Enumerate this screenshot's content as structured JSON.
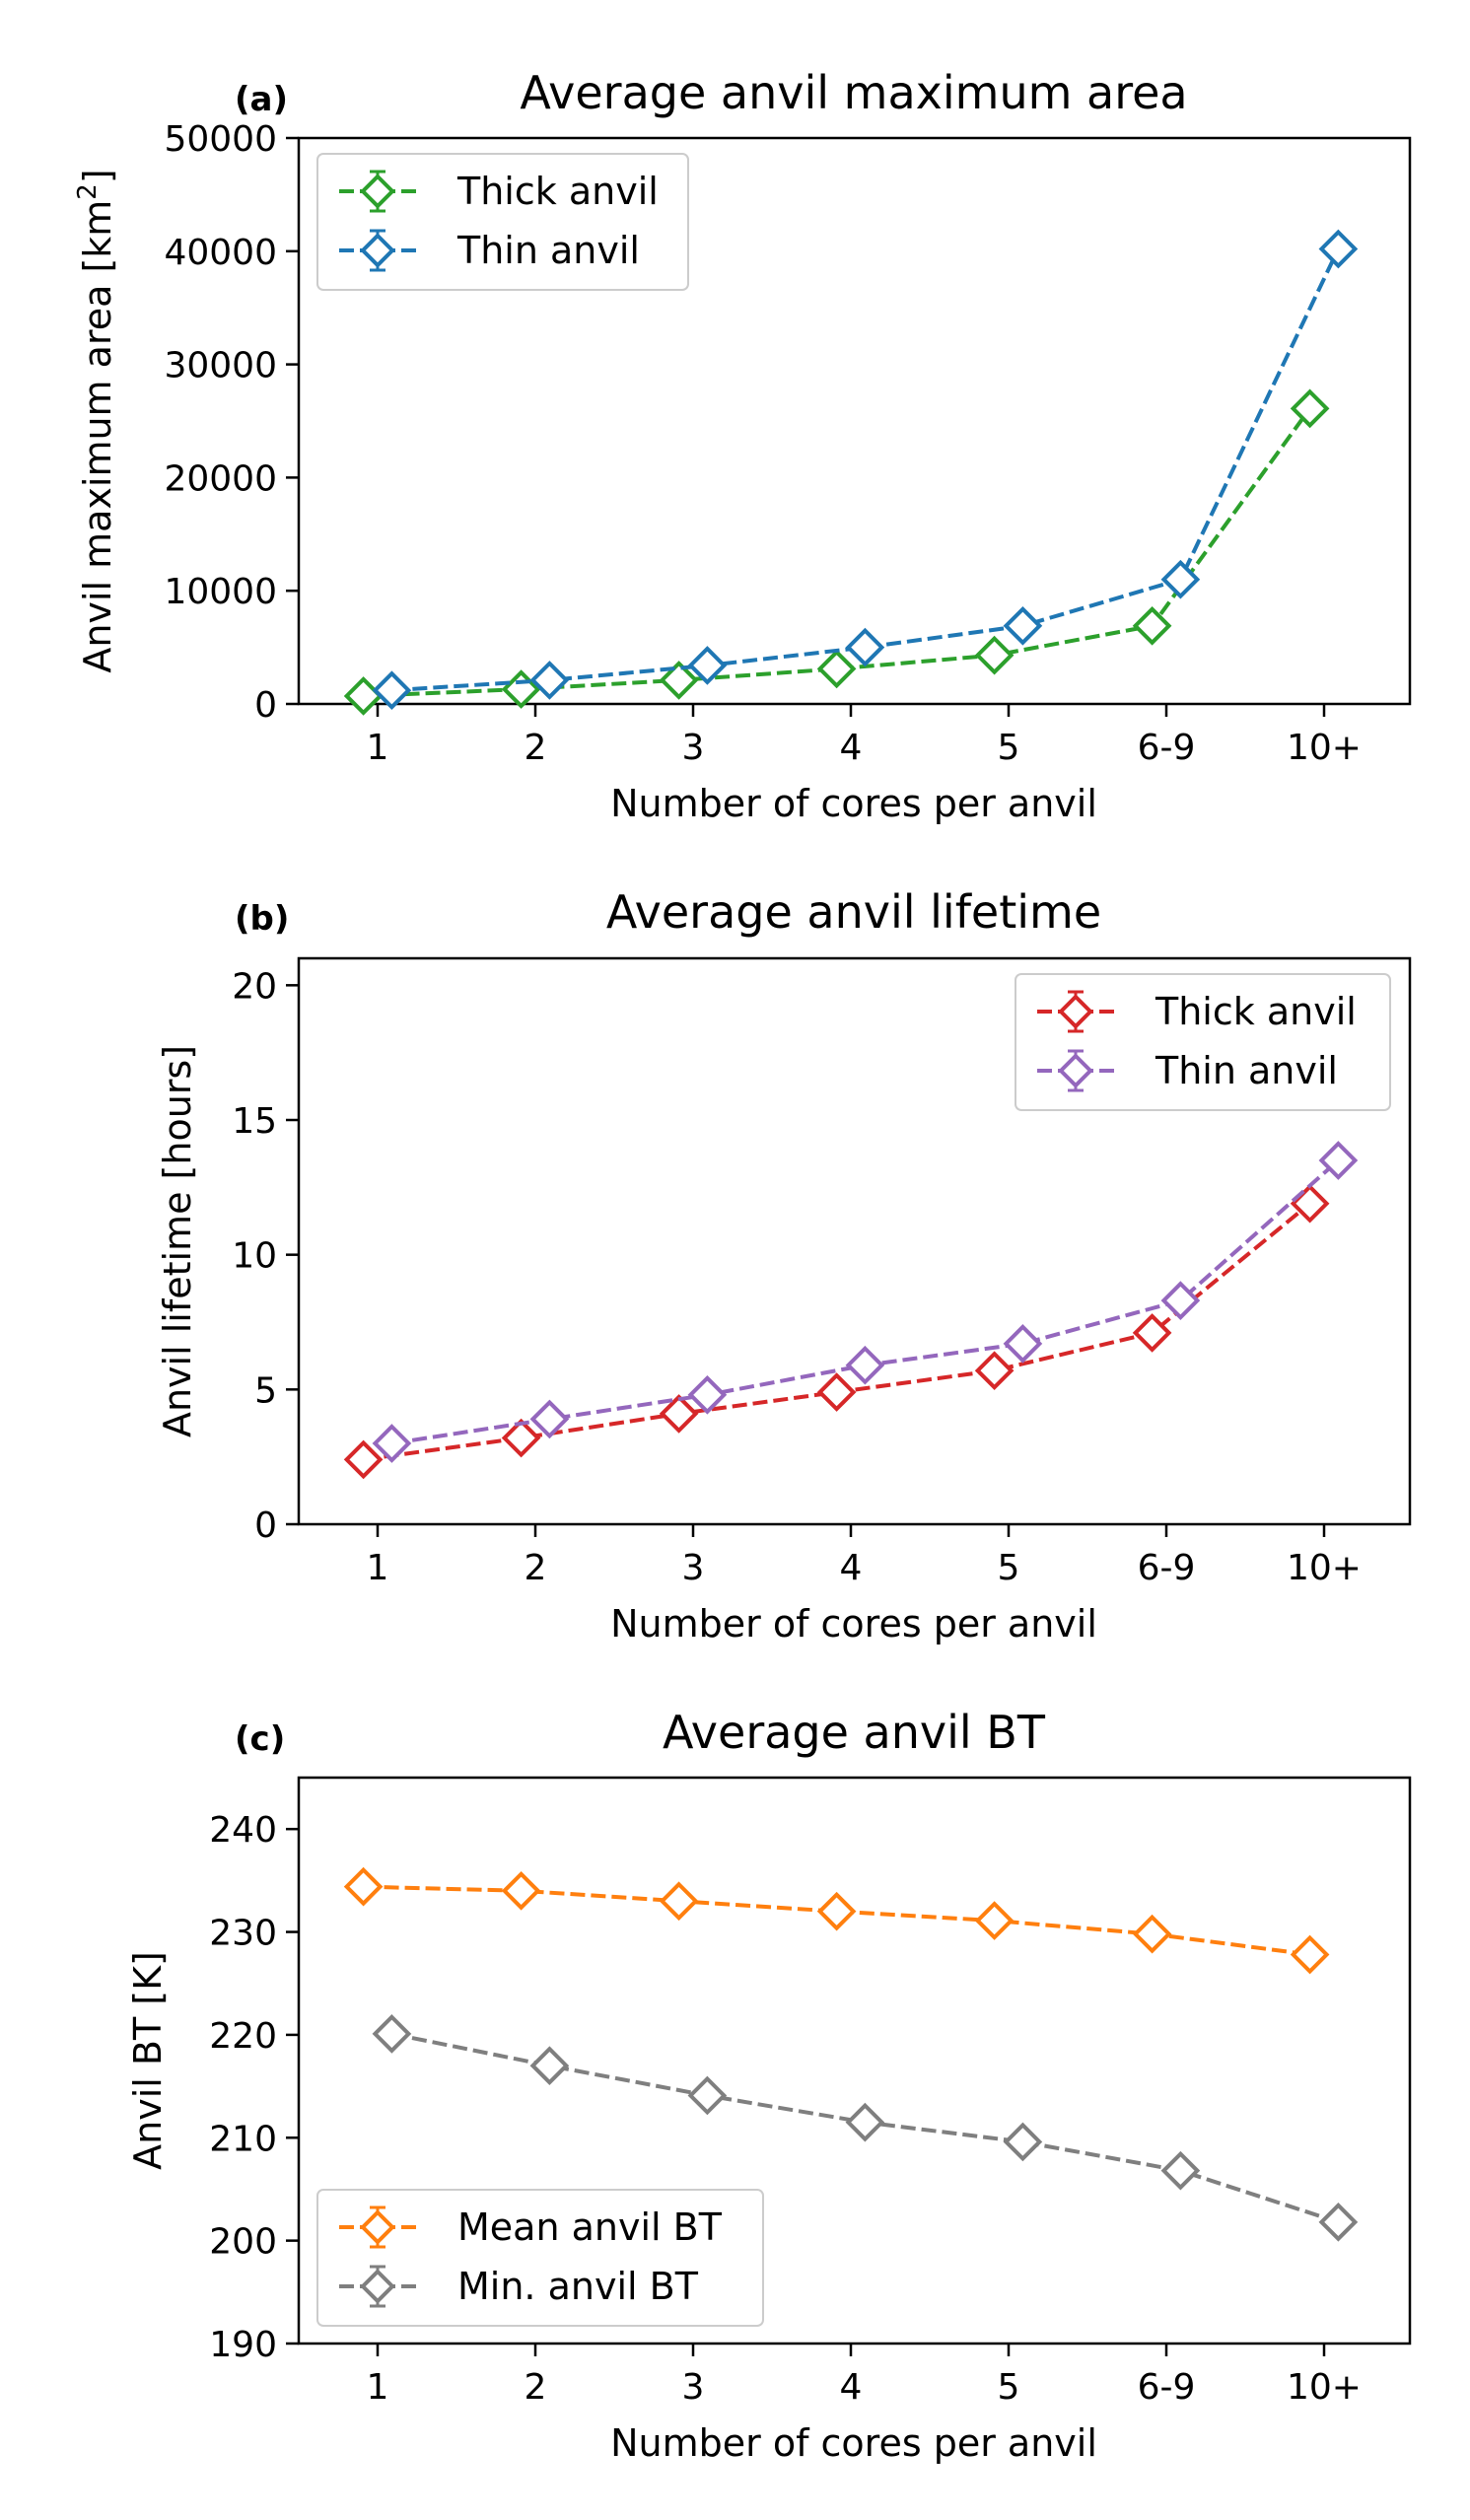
{
  "chart_data": [
    {
      "type": "line",
      "panel_label": "(a)",
      "title": "Average anvil maximum area",
      "xlabel": "Number of cores per anvil",
      "ylabel": "Anvil maximum area [km",
      "ylabel_sup": "2",
      "ylabel_end": "]",
      "categories": [
        "1",
        "2",
        "3",
        "4",
        "5",
        "6-9",
        "10+"
      ],
      "ylim": [
        0,
        50000
      ],
      "yticks": [
        0,
        10000,
        20000,
        30000,
        40000,
        50000
      ],
      "legend_position": "upper-left",
      "series": [
        {
          "name": "Thick anvil",
          "color": "#2ca02c",
          "offset": -0.09,
          "values": [
            700,
            1300,
            2100,
            3100,
            4300,
            6900,
            26100
          ]
        },
        {
          "name": "Thin anvil",
          "color": "#1f77b4",
          "offset": 0.09,
          "values": [
            1200,
            2100,
            3400,
            5000,
            6900,
            11000,
            40200
          ]
        }
      ]
    },
    {
      "type": "line",
      "panel_label": "(b)",
      "title": "Average anvil lifetime",
      "xlabel": "Number of cores per anvil",
      "ylabel": "Anvil lifetime [hours]",
      "categories": [
        "1",
        "2",
        "3",
        "4",
        "5",
        "6-9",
        "10+"
      ],
      "ylim": [
        0,
        21
      ],
      "yticks": [
        0,
        5,
        10,
        15,
        20
      ],
      "legend_position": "upper-right",
      "series": [
        {
          "name": "Thick anvil",
          "color": "#d62728",
          "offset": -0.09,
          "values": [
            2.4,
            3.2,
            4.1,
            4.9,
            5.7,
            7.1,
            11.9
          ]
        },
        {
          "name": "Thin anvil",
          "color": "#9467bd",
          "offset": 0.09,
          "values": [
            3.0,
            3.9,
            4.8,
            5.9,
            6.7,
            8.3,
            13.5
          ]
        }
      ]
    },
    {
      "type": "line",
      "panel_label": "(c)",
      "title": "Average anvil BT",
      "xlabel": "Number of cores per anvil",
      "ylabel": "Anvil BT [K]",
      "categories": [
        "1",
        "2",
        "3",
        "4",
        "5",
        "6-9",
        "10+"
      ],
      "ylim": [
        190,
        245
      ],
      "yticks": [
        190,
        200,
        210,
        220,
        230,
        240
      ],
      "legend_position": "lower-left",
      "series": [
        {
          "name": "Mean anvil BT",
          "color": "#ff7f0e",
          "offset": -0.09,
          "values": [
            234.4,
            234.0,
            233.0,
            232.0,
            231.1,
            229.8,
            227.8
          ]
        },
        {
          "name": "Min. anvil BT",
          "color": "#7f7f7f",
          "offset": 0.09,
          "values": [
            220.1,
            217.0,
            214.1,
            211.5,
            209.6,
            206.8,
            201.8
          ]
        }
      ]
    }
  ]
}
